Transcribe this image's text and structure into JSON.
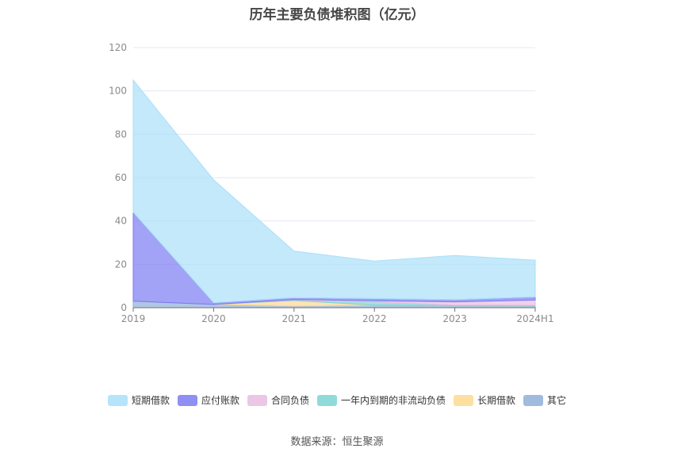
{
  "chart_data": {
    "type": "area",
    "stacked": true,
    "title": "历年主要负债堆积图（亿元）",
    "categories": [
      "2019",
      "2020",
      "2021",
      "2022",
      "2023",
      "2024H1"
    ],
    "ylim": [
      0,
      120
    ],
    "yticks": [
      0,
      20,
      40,
      60,
      80,
      100,
      120
    ],
    "grid": true,
    "legend_position": "bottom",
    "series": [
      {
        "name": "其它",
        "color": "#8fafd8",
        "values": [
          3.0,
          1.5,
          0.8,
          1.2,
          0.9,
          0.8
        ]
      },
      {
        "name": "长期借款",
        "color": "#ffd98e",
        "values": [
          0,
          0,
          2.5,
          0,
          0,
          0
        ]
      },
      {
        "name": "一年内到期的非流动负债",
        "color": "#7ed3d3",
        "values": [
          0,
          0,
          0.3,
          1.5,
          0.3,
          0.3
        ]
      },
      {
        "name": "合同负债",
        "color": "#e8bde0",
        "values": [
          0,
          0,
          0.2,
          0.5,
          1.5,
          2.4
        ]
      },
      {
        "name": "应付账款",
        "color": "#7b7bf2",
        "values": [
          41.0,
          0.8,
          0.8,
          1.0,
          1.0,
          1.5
        ]
      },
      {
        "name": "短期借款",
        "color": "#a9dff9",
        "values": [
          61.0,
          56.7,
          21.5,
          17.3,
          20.4,
          16.9
        ]
      }
    ],
    "legend_order": [
      "短期借款",
      "应付账款",
      "合同负债",
      "一年内到期的非流动负债",
      "长期借款",
      "其它"
    ]
  },
  "source_text": "数据来源：恒生聚源"
}
